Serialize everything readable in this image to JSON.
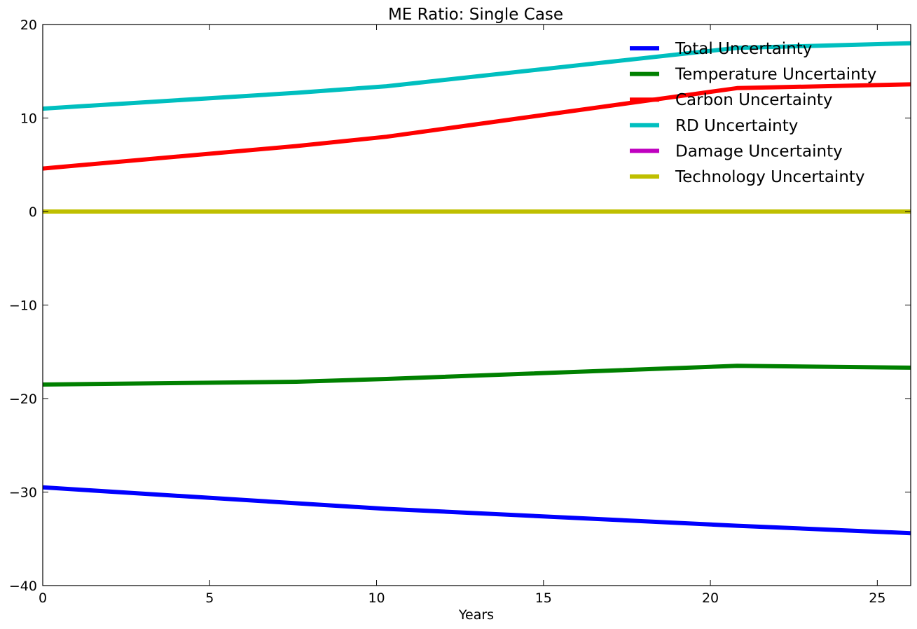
{
  "chart_data": {
    "type": "line",
    "title": "ME Ratio: Single Case",
    "xlabel": "Years",
    "ylabel": "",
    "xlim": [
      0,
      26
    ],
    "ylim": [
      -40,
      20
    ],
    "xticks": [
      0,
      5,
      10,
      15,
      20,
      25
    ],
    "xtick_labels": [
      "0",
      "5",
      "10",
      "15",
      "20",
      "25"
    ],
    "yticks": [
      -40,
      -30,
      -20,
      -10,
      0,
      10,
      20
    ],
    "ytick_labels": [
      "−40",
      "−30",
      "−20",
      "−10",
      "0",
      "10",
      "20"
    ],
    "grid": false,
    "legend_position": "top-right",
    "x": [
      0,
      7.6,
      10.3,
      20.8,
      26
    ],
    "series": [
      {
        "name": "Total Uncertainty",
        "color": "#0000ff",
        "values": [
          -29.5,
          -31.2,
          -31.8,
          -33.6,
          -34.4
        ]
      },
      {
        "name": "Temperature Uncertainty",
        "color": "#008000",
        "values": [
          -18.5,
          -18.2,
          -17.9,
          -16.5,
          -16.7
        ]
      },
      {
        "name": "Carbon Uncertainty",
        "color": "#ff0000",
        "values": [
          4.6,
          7.0,
          8.0,
          13.2,
          13.6
        ]
      },
      {
        "name": "RD Uncertainty",
        "color": "#00bfbf",
        "values": [
          11.0,
          12.7,
          13.4,
          17.5,
          18.0
        ]
      },
      {
        "name": "Damage Uncertainty",
        "color": "#bf00bf",
        "values": [
          0,
          0,
          0,
          0,
          0
        ]
      },
      {
        "name": "Technology Uncertainty",
        "color": "#bfbf00",
        "values": [
          0,
          0,
          0,
          0,
          0
        ]
      }
    ]
  }
}
